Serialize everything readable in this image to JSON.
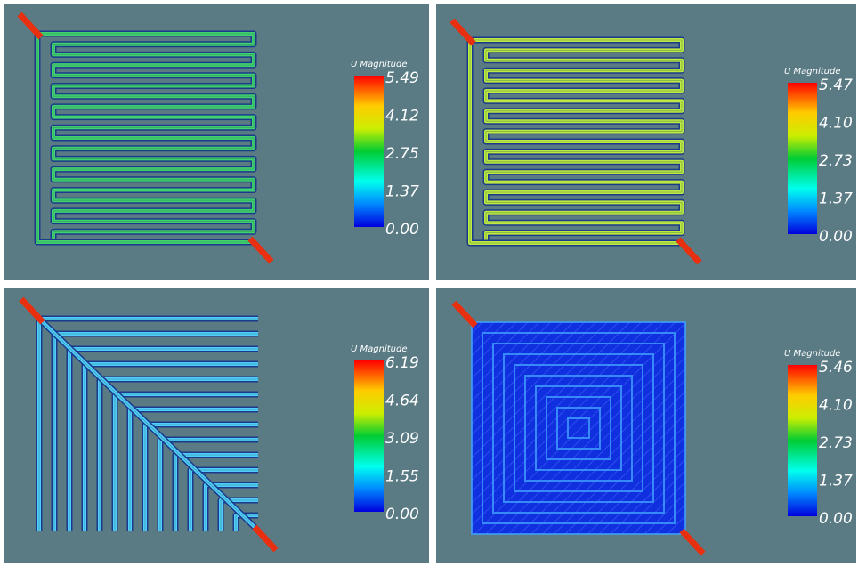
{
  "panels": [
    {
      "legend": {
        "title": "U Magnitude",
        "ticks": [
          "5.49",
          "4.12",
          "2.75",
          "1.37",
          "0.00"
        ]
      }
    },
    {
      "legend": {
        "title": "U Magnitude",
        "ticks": [
          "5.47",
          "4.10",
          "2.73",
          "1.37",
          "0.00"
        ]
      }
    },
    {
      "legend": {
        "title": "U Magnitude",
        "ticks": [
          "6.19",
          "4.64",
          "3.09",
          "1.55",
          "0.00"
        ]
      }
    },
    {
      "legend": {
        "title": "U Magnitude",
        "ticks": [
          "5.46",
          "4.10",
          "2.73",
          "1.37",
          "0.00"
        ]
      }
    }
  ]
}
